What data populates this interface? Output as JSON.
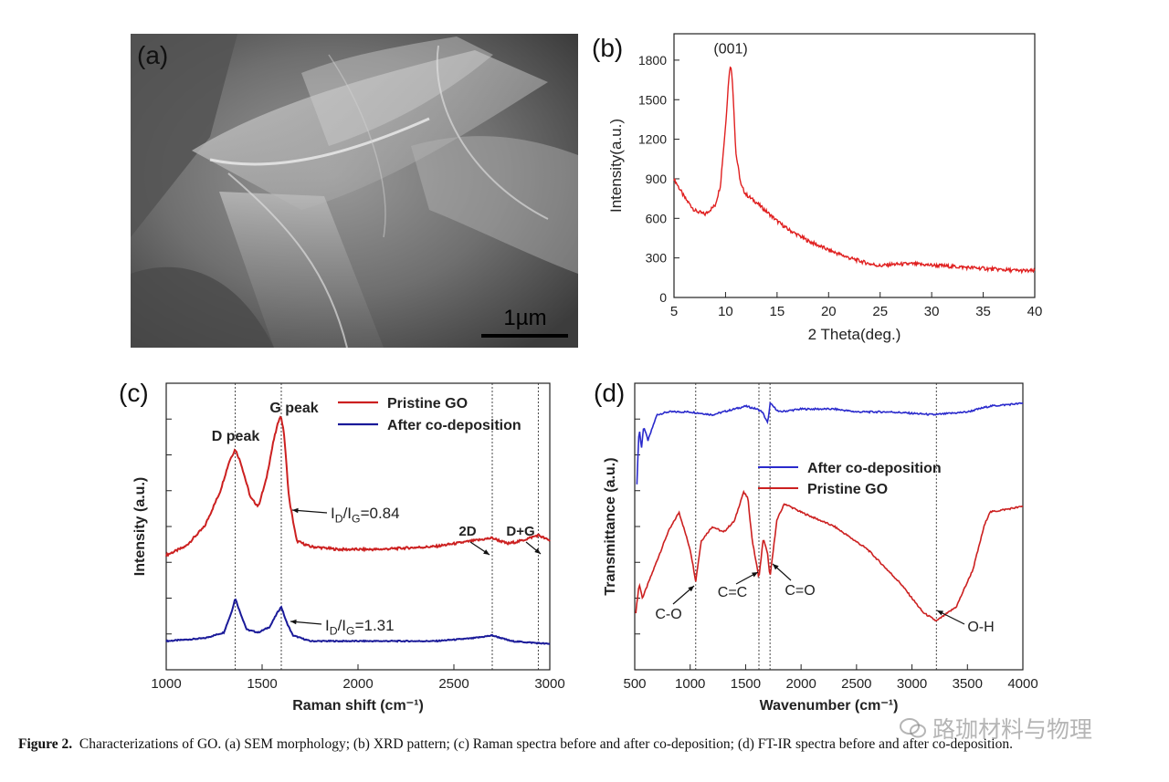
{
  "figure": {
    "panel_labels": {
      "a": "(a)",
      "b": "(b)",
      "c": "(c)",
      "d": "(d)"
    },
    "scale_bar_label": "1µm",
    "caption_label": "Figure 2.",
    "caption_text": "Characterizations of GO. (a) SEM morphology; (b) XRD pattern; (c) Raman spectra before and after co-deposition; (d) FT-IR spectra before and after co-deposition.",
    "watermark": "路珈材料与物理"
  },
  "chart_data": [
    {
      "id": "b",
      "type": "line",
      "title": "",
      "xlabel": "2 Theta(deg.)",
      "ylabel": "Intensity(a.u.)",
      "xlim": [
        5,
        40
      ],
      "ylim": [
        0,
        2000
      ],
      "xticks": [
        5,
        10,
        15,
        20,
        25,
        30,
        35,
        40
      ],
      "yticks": [
        0,
        300,
        600,
        900,
        1200,
        1500,
        1800
      ],
      "annotations": [
        {
          "text": "(001)",
          "x": 10.5,
          "y": 1850
        }
      ],
      "series": [
        {
          "name": "GO",
          "color": "#e02020",
          "x": [
            5,
            6,
            7,
            8,
            9,
            9.5,
            10,
            10.3,
            10.5,
            10.7,
            11,
            11.5,
            12,
            13,
            14,
            15,
            16,
            18,
            20,
            22,
            24,
            25,
            26,
            28,
            30,
            32,
            34,
            36,
            38,
            40
          ],
          "y": [
            900,
            760,
            660,
            630,
            700,
            850,
            1300,
            1650,
            1780,
            1600,
            1100,
            850,
            780,
            720,
            650,
            580,
            520,
            430,
            360,
            300,
            255,
            240,
            250,
            255,
            245,
            235,
            225,
            215,
            205,
            200
          ]
        }
      ]
    },
    {
      "id": "c",
      "type": "line",
      "title": "",
      "xlabel": "Raman shift (cm⁻¹)",
      "ylabel": "Intensity (a.u.)",
      "xlim": [
        1000,
        3000
      ],
      "ylim": [
        0,
        1
      ],
      "xticks": [
        1000,
        1500,
        2000,
        2500,
        3000
      ],
      "guide_lines": [
        1360,
        1600,
        2700,
        2940
      ],
      "annotations": [
        {
          "text": "D peak",
          "x": 1350,
          "y": 0.87
        },
        {
          "text": "G peak",
          "x": 1600,
          "y": 0.96
        },
        {
          "text": "I_D/I_G=0.84",
          "x": 1620,
          "y": 0.56
        },
        {
          "text": "2D",
          "x": 2690,
          "y": 0.38
        },
        {
          "text": "D+G",
          "x": 2930,
          "y": 0.38
        },
        {
          "text": "I_D/I_G=1.31",
          "x": 1620,
          "y": 0.1
        }
      ],
      "legend": {
        "position": "top-right",
        "entries": [
          "Pristine GO",
          "After co-deposition"
        ]
      },
      "series": [
        {
          "name": "Pristine GO",
          "color": "#cc2020",
          "x": [
            1000,
            1100,
            1200,
            1280,
            1330,
            1360,
            1390,
            1440,
            1480,
            1520,
            1560,
            1590,
            1600,
            1615,
            1640,
            1680,
            1750,
            1900,
            2100,
            2400,
            2600,
            2700,
            2780,
            2850,
            2940,
            3000
          ],
          "y": [
            0.4,
            0.43,
            0.5,
            0.62,
            0.73,
            0.77,
            0.72,
            0.6,
            0.57,
            0.66,
            0.8,
            0.88,
            0.88,
            0.82,
            0.6,
            0.45,
            0.43,
            0.42,
            0.42,
            0.43,
            0.45,
            0.46,
            0.44,
            0.45,
            0.47,
            0.45
          ]
        },
        {
          "name": "After co-deposition",
          "color": "#1a1a99",
          "x": [
            1000,
            1200,
            1300,
            1340,
            1360,
            1380,
            1420,
            1480,
            1540,
            1580,
            1600,
            1625,
            1660,
            1750,
            2000,
            2400,
            2600,
            2700,
            2800,
            3000
          ],
          "y": [
            0.1,
            0.11,
            0.13,
            0.2,
            0.25,
            0.21,
            0.14,
            0.13,
            0.15,
            0.2,
            0.22,
            0.17,
            0.12,
            0.1,
            0.1,
            0.1,
            0.11,
            0.12,
            0.1,
            0.09
          ]
        }
      ]
    },
    {
      "id": "d",
      "type": "line",
      "title": "",
      "xlabel": "Wavenumber (cm⁻¹)",
      "ylabel": "Transmittance (a.u.)",
      "xlim": [
        500,
        4000
      ],
      "ylim": [
        0,
        1
      ],
      "xticks": [
        500,
        1000,
        1500,
        2000,
        2500,
        3000,
        3500,
        4000
      ],
      "guide_lines": [
        1050,
        1620,
        1720,
        3220
      ],
      "annotations": [
        {
          "text": "C-O",
          "x": 760,
          "y": 0.22
        },
        {
          "text": "C=C",
          "x": 1370,
          "y": 0.28
        },
        {
          "text": "C=O",
          "x": 1850,
          "y": 0.28
        },
        {
          "text": "O-H",
          "x": 3400,
          "y": 0.18
        }
      ],
      "legend": {
        "position": "center",
        "entries": [
          "After co-deposition",
          "Pristine GO"
        ]
      },
      "series": [
        {
          "name": "After co-deposition",
          "color": "#2a2acc",
          "x": [
            520,
            540,
            560,
            580,
            620,
            700,
            800,
            1000,
            1200,
            1500,
            1600,
            1650,
            1700,
            1720,
            1800,
            2000,
            2300,
            2500,
            2800,
            3200,
            3500,
            3700,
            4000
          ],
          "y": [
            0.65,
            0.85,
            0.77,
            0.85,
            0.8,
            0.89,
            0.9,
            0.9,
            0.89,
            0.92,
            0.91,
            0.9,
            0.86,
            0.93,
            0.9,
            0.91,
            0.91,
            0.9,
            0.9,
            0.89,
            0.9,
            0.92,
            0.93
          ]
        },
        {
          "name": "Pristine GO",
          "color": "#cc2020",
          "x": [
            510,
            540,
            570,
            600,
            700,
            800,
            900,
            1000,
            1050,
            1100,
            1200,
            1300,
            1400,
            1480,
            1520,
            1560,
            1620,
            1660,
            1700,
            1720,
            1780,
            1850,
            2000,
            2300,
            2600,
            2900,
            3100,
            3220,
            3400,
            3550,
            3650,
            3700,
            4000
          ],
          "y": [
            0.2,
            0.3,
            0.25,
            0.28,
            0.38,
            0.48,
            0.55,
            0.42,
            0.31,
            0.45,
            0.5,
            0.48,
            0.52,
            0.62,
            0.6,
            0.45,
            0.32,
            0.46,
            0.4,
            0.32,
            0.52,
            0.58,
            0.55,
            0.5,
            0.42,
            0.3,
            0.2,
            0.17,
            0.22,
            0.35,
            0.5,
            0.55,
            0.57
          ]
        }
      ]
    }
  ]
}
